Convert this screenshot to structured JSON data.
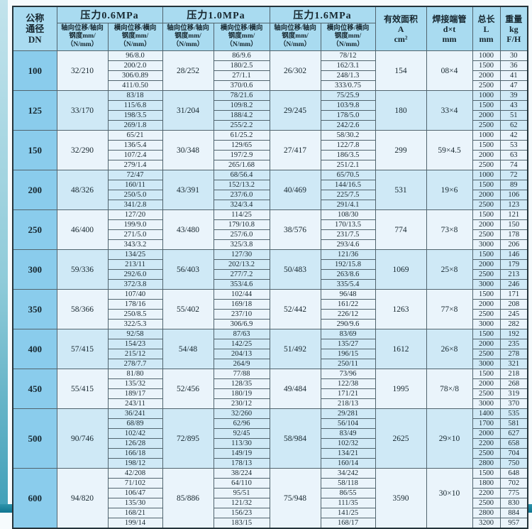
{
  "colors": {
    "header_bg": "#a9dbf0",
    "dn_col_bg": "#8accec",
    "band_light": "#eaf4fb",
    "band_blue": "#cfe9f6",
    "edge_teal": "#3f9fb8",
    "border": "#51646e"
  },
  "table": {
    "header": {
      "dn": "公称\n通径\nDN",
      "pressures": [
        "压力0.6MPa",
        "压力1.0MPa",
        "压力1.6MPa"
      ],
      "axial_label": "轴向位移/轴向\n钢度mm/\n（N/mm）",
      "lateral_label": "横向位移/横向\n钢度mm/\n（N/mm）",
      "area": "有效面积\nA\ncm²",
      "dxt": "焊接端管\nd×t\nmm",
      "length": "总长\nL\nmm",
      "weight": "重量\nkg\nF/H"
    },
    "groups": [
      {
        "dn": "100",
        "axial06": "32/210",
        "axial10": "28/252",
        "axial16": "26/302",
        "area": "154",
        "dxt": "08×4",
        "rows": [
          {
            "lat06": "96/8.0",
            "lat10": "86/9.6",
            "lat16": "78/12",
            "len": "1000",
            "wt": "30"
          },
          {
            "lat06": "200/2.0",
            "lat10": "180/2.5",
            "lat16": "162/3.1",
            "len": "1500",
            "wt": "36"
          },
          {
            "lat06": "306/0.89",
            "lat10": "27/1.1",
            "lat16": "248/1.3",
            "len": "2000",
            "wt": "41"
          },
          {
            "lat06": "411/0.50",
            "lat10": "370/0.6",
            "lat16": "333/0.75",
            "len": "2500",
            "wt": "47"
          }
        ]
      },
      {
        "dn": "125",
        "axial06": "33/170",
        "axial10": "31/204",
        "axial16": "29/245",
        "area": "180",
        "dxt": "33×4",
        "rows": [
          {
            "lat06": "83/18",
            "lat10": "78/21.6",
            "lat16": "75/25.9",
            "len": "1000",
            "wt": "39"
          },
          {
            "lat06": "115/6.8",
            "lat10": "109/8.2",
            "lat16": "103/9.8",
            "len": "1500",
            "wt": "43"
          },
          {
            "lat06": "198/3.5",
            "lat10": "188/4.2",
            "lat16": "178/5.0",
            "len": "2000",
            "wt": "51"
          },
          {
            "lat06": "269/1.8",
            "lat10": "255/2.2",
            "lat16": "242/2.6",
            "len": "2500",
            "wt": "62"
          }
        ]
      },
      {
        "dn": "150",
        "axial06": "32/290",
        "axial10": "30/348",
        "axial16": "27/417",
        "area": "299",
        "dxt": "59×4.5",
        "rows": [
          {
            "lat06": "65/21",
            "lat10": "61/25.2",
            "lat16": "58/30.2",
            "len": "1000",
            "wt": "42"
          },
          {
            "lat06": "136/5.4",
            "lat10": "129/65",
            "lat16": "122/7.8",
            "len": "1500",
            "wt": "53"
          },
          {
            "lat06": "107/2.4",
            "lat10": "197/2.9",
            "lat16": "186/3.5",
            "len": "2000",
            "wt": "63"
          },
          {
            "lat06": "279/1.4",
            "lat10": "265/1.68",
            "lat16": "251/2.1",
            "len": "2500",
            "wt": "74"
          }
        ]
      },
      {
        "dn": "200",
        "axial06": "48/326",
        "axial10": "43/391",
        "axial16": "40/469",
        "area": "531",
        "dxt": "19×6",
        "rows": [
          {
            "lat06": "72/47",
            "lat10": "68/56.4",
            "lat16": "65/70.5",
            "len": "1000",
            "wt": "72"
          },
          {
            "lat06": "160/11",
            "lat10": "152/13.2",
            "lat16": "144/16.5",
            "len": "1500",
            "wt": "89"
          },
          {
            "lat06": "250/5.0",
            "lat10": "237/6.0",
            "lat16": "225/7.5",
            "len": "2000",
            "wt": "106"
          },
          {
            "lat06": "341/2.8",
            "lat10": "324/3.4",
            "lat16": "291/4.1",
            "len": "2500",
            "wt": "123"
          }
        ]
      },
      {
        "dn": "250",
        "axial06": "46/400",
        "axial10": "43/480",
        "axial16": "38/576",
        "area": "774",
        "dxt": "73×8",
        "rows": [
          {
            "lat06": "127/20",
            "lat10": "114/25",
            "lat16": "108/30",
            "len": "1500",
            "wt": "121"
          },
          {
            "lat06": "199/9.0",
            "lat10": "179/10.8",
            "lat16": "170/13.5",
            "len": "2000",
            "wt": "150"
          },
          {
            "lat06": "271/5.0",
            "lat10": "257/6.0",
            "lat16": "231/7.5",
            "len": "2500",
            "wt": "178"
          },
          {
            "lat06": "343/3.2",
            "lat10": "325/3.8",
            "lat16": "293/4.6",
            "len": "3000",
            "wt": "206"
          }
        ]
      },
      {
        "dn": "300",
        "axial06": "59/336",
        "axial10": "56/403",
        "axial16": "50/483",
        "area": "1069",
        "dxt": "25×8",
        "rows": [
          {
            "lat06": "134/25",
            "lat10": "127/30",
            "lat16": "121/36",
            "len": "1500",
            "wt": "146"
          },
          {
            "lat06": "213/11",
            "lat10": "202/13.2",
            "lat16": "192/15.8",
            "len": "2000",
            "wt": "179"
          },
          {
            "lat06": "292/6.0",
            "lat10": "277/7.2",
            "lat16": "263/8.6",
            "len": "2500",
            "wt": "213"
          },
          {
            "lat06": "372/3.8",
            "lat10": "353/4.6",
            "lat16": "335/5.4",
            "len": "3000",
            "wt": "246"
          }
        ]
      },
      {
        "dn": "350",
        "axial06": "58/366",
        "axial10": "55/402",
        "axial16": "52/442",
        "area": "1263",
        "dxt": "77×8",
        "rows": [
          {
            "lat06": "107/40",
            "lat10": "102/44",
            "lat16": "96/48",
            "len": "1500",
            "wt": "171"
          },
          {
            "lat06": "178/16",
            "lat10": "169/18",
            "lat16": "161/22",
            "len": "2000",
            "wt": "208"
          },
          {
            "lat06": "250/8.5",
            "lat10": "237/10",
            "lat16": "226/12",
            "len": "2500",
            "wt": "245"
          },
          {
            "lat06": "322/5.3",
            "lat10": "306/6.9",
            "lat16": "290/9.6",
            "len": "3000",
            "wt": "282"
          }
        ]
      },
      {
        "dn": "400",
        "axial06": "57/415",
        "axial10": "54/48",
        "axial16": "51/492",
        "area": "1612",
        "dxt": "26×8",
        "rows": [
          {
            "lat06": "92/58",
            "lat10": "87/63",
            "lat16": "83/69",
            "len": "1500",
            "wt": "192"
          },
          {
            "lat06": "154/23",
            "lat10": "142/25",
            "lat16": "135/27",
            "len": "2000",
            "wt": "235"
          },
          {
            "lat06": "215/12",
            "lat10": "204/13",
            "lat16": "196/15",
            "len": "2500",
            "wt": "278"
          },
          {
            "lat06": "278/7.7",
            "lat10": "264/9",
            "lat16": "250/11",
            "len": "3000",
            "wt": "321"
          }
        ]
      },
      {
        "dn": "450",
        "axial06": "55/415",
        "axial10": "52/456",
        "axial16": "49/484",
        "area": "1995",
        "dxt": "78×/8",
        "rows": [
          {
            "lat06": "81/80",
            "lat10": "77/88",
            "lat16": "73/96",
            "len": "1500",
            "wt": "218"
          },
          {
            "lat06": "135/32",
            "lat10": "128/35",
            "lat16": "122/38",
            "len": "2000",
            "wt": "268"
          },
          {
            "lat06": "189/17",
            "lat10": "180/19",
            "lat16": "171/21",
            "len": "2500",
            "wt": "319"
          },
          {
            "lat06": "243/11",
            "lat10": "230/12",
            "lat16": "218/13",
            "len": "3000",
            "wt": "370"
          }
        ]
      },
      {
        "dn": "500",
        "axial06": "90/746",
        "axial10": "72/895",
        "axial16": "58/984",
        "area": "2625",
        "dxt": "29×10",
        "rows": [
          {
            "lat06": "36/241",
            "lat10": "32/260",
            "lat16": "29/281",
            "len": "1400",
            "wt": "535"
          },
          {
            "lat06": "68/89",
            "lat10": "62/96",
            "lat16": "56/104",
            "len": "1700",
            "wt": "581"
          },
          {
            "lat06": "102/42",
            "lat10": "92/45",
            "lat16": "83/49",
            "len": "2000",
            "wt": "627"
          },
          {
            "lat06": "126/28",
            "lat10": "113/30",
            "lat16": "102/32",
            "len": "2200",
            "wt": "658"
          },
          {
            "lat06": "166/18",
            "lat10": "149/19",
            "lat16": "134/21",
            "len": "2500",
            "wt": "704"
          },
          {
            "lat06": "198/12",
            "lat10": "178/13",
            "lat16": "160/14",
            "len": "2800",
            "wt": "750"
          }
        ]
      },
      {
        "dn": "600",
        "axial06": "94/820",
        "axial10": "85/886",
        "axial16": "75/948",
        "area": "3590",
        "dxt": "30×10",
        "rows": [
          {
            "lat06": "42/208",
            "lat10": "38/224",
            "lat16": "34/242",
            "len": "1500",
            "wt": "648"
          },
          {
            "lat06": "71/102",
            "lat10": "64/110",
            "lat16": "58/118",
            "len": "1800",
            "wt": "702"
          },
          {
            "lat06": "106/47",
            "lat10": "95/51",
            "lat16": "86/55",
            "len": "2200",
            "wt": "775"
          },
          {
            "lat06": "135/30",
            "lat10": "121/32",
            "lat16": "111/35",
            "len": "2500",
            "wt": "830"
          },
          {
            "lat06": "168/21",
            "lat10": "156/23",
            "lat16": "141/25",
            "len": "2800",
            "wt": "884"
          },
          {
            "lat06": "199/14",
            "lat10": "183/15",
            "lat16": "168/17",
            "len": "3200",
            "wt": "957"
          }
        ]
      }
    ]
  }
}
